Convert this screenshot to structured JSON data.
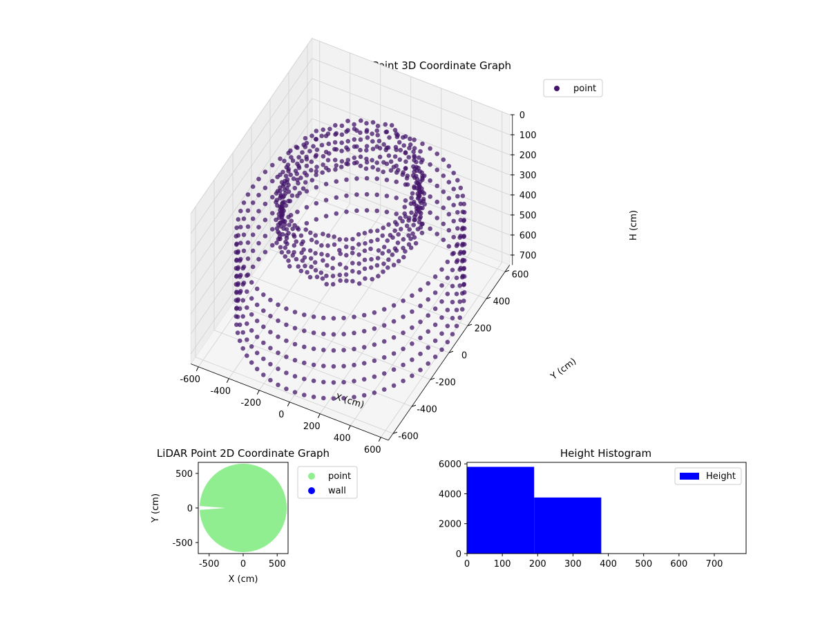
{
  "colors": {
    "point3d": "#43146a",
    "point2d": "#90ee90",
    "wall": "#0000ff",
    "histogram": "#0000ff",
    "pane": "#f2f2f2",
    "grid": "#d0d0d0"
  },
  "chart_data": [
    {
      "type": "scatter",
      "projection": "3d",
      "title": "LiDAR Point 3D Coordinate Graph",
      "xlabel": "X (cm)",
      "ylabel": "Y (cm)",
      "zlabel": "H (cm)",
      "xlim": [
        -650,
        650
      ],
      "ylim": [
        -650,
        650
      ],
      "zlim": [
        750,
        0
      ],
      "xticks": [
        "-600",
        "-400",
        "-200",
        "0",
        "200",
        "400",
        "600"
      ],
      "yticks": [
        "-600",
        "-400",
        "-200",
        "0",
        "200",
        "400",
        "600"
      ],
      "zticks": [
        "0",
        "100",
        "200",
        "300",
        "400",
        "500",
        "600",
        "700"
      ],
      "legend": {
        "position": "top-right",
        "entries": [
          "point"
        ]
      },
      "grid": true,
      "series": [
        {
          "name": "point",
          "shape": "ring of vertical scan lines",
          "outer_radius": 640,
          "inner_radius": 380,
          "inner_wall_height": [
            80,
            300
          ],
          "outer_wall_height": [
            300,
            700
          ],
          "scan_lines": 70,
          "points_per_line": 6
        }
      ]
    },
    {
      "type": "scatter",
      "title": "LiDAR Point 2D Coordinate Graph",
      "xlabel": "X (cm)",
      "ylabel": "Y (cm)",
      "xlim": [
        -660,
        660
      ],
      "ylim": [
        -660,
        660
      ],
      "xticks": [
        "-500",
        "0",
        "500"
      ],
      "yticks": [
        "-500",
        "0",
        "500"
      ],
      "legend": {
        "position": "outside-right",
        "entries": [
          "point",
          "wall"
        ]
      },
      "grid": false,
      "series": [
        {
          "name": "point",
          "shape": "filled disc",
          "radius": 640,
          "notch": {
            "from_x": -660,
            "to_x": -260,
            "y": 0,
            "half_width": 30
          }
        },
        {
          "name": "wall",
          "points": []
        }
      ]
    },
    {
      "type": "bar",
      "subtype": "histogram",
      "title": "Height Histogram",
      "xlim": [
        0,
        790
      ],
      "ylim": [
        0,
        6100
      ],
      "xticks": [
        "0",
        "100",
        "200",
        "300",
        "400",
        "500",
        "600",
        "700"
      ],
      "yticks": [
        "0",
        "2000",
        "4000",
        "6000"
      ],
      "legend": {
        "position": "top-right",
        "entries": [
          "Height"
        ]
      },
      "grid": false,
      "series": [
        {
          "name": "Height",
          "bins": [
            {
              "x0": 0,
              "x1": 190,
              "count": 5800
            },
            {
              "x0": 190,
              "x1": 380,
              "count": 3750
            },
            {
              "x0": 380,
              "x1": 570,
              "count": 0
            },
            {
              "x0": 570,
              "x1": 760,
              "count": 0
            }
          ]
        }
      ]
    }
  ]
}
